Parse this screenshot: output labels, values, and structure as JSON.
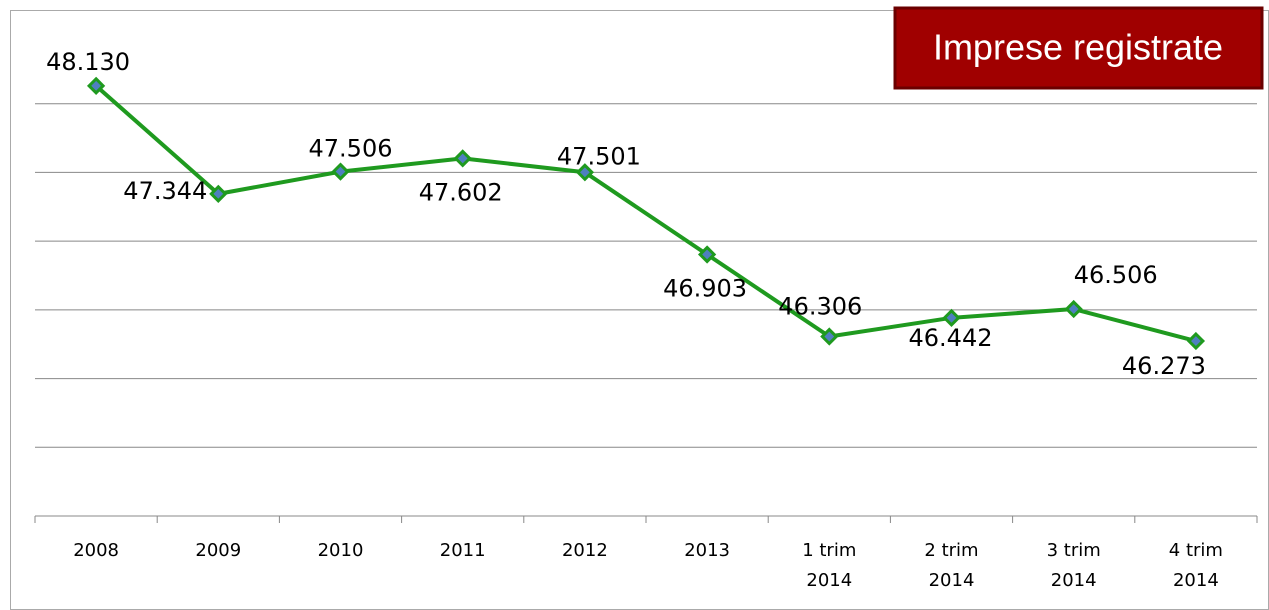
{
  "chart_data": {
    "type": "line",
    "title": "Imprese registrate",
    "categories": [
      "2008",
      "2009",
      "2010",
      "2011",
      "2012",
      "2013",
      "1 trim 2014",
      "2 trim 2014",
      "3 trim 2014",
      "4 trim 2014"
    ],
    "series": [
      {
        "name": "Imprese registrate",
        "color": "#1f9a1f",
        "values": [
          48130,
          47344,
          47506,
          47602,
          47501,
          46903,
          46306,
          46442,
          46506,
          46273
        ],
        "value_labels": [
          "48.130",
          "47.344",
          "47.506",
          "47.602",
          "47.501",
          "46.903",
          "46.306",
          "46.442",
          "46.506",
          "46.273"
        ]
      }
    ],
    "ylim": [
      45000,
      48500
    ],
    "yticks": [
      45500,
      46000,
      46500,
      47000,
      47500,
      48000
    ],
    "grid": true
  }
}
